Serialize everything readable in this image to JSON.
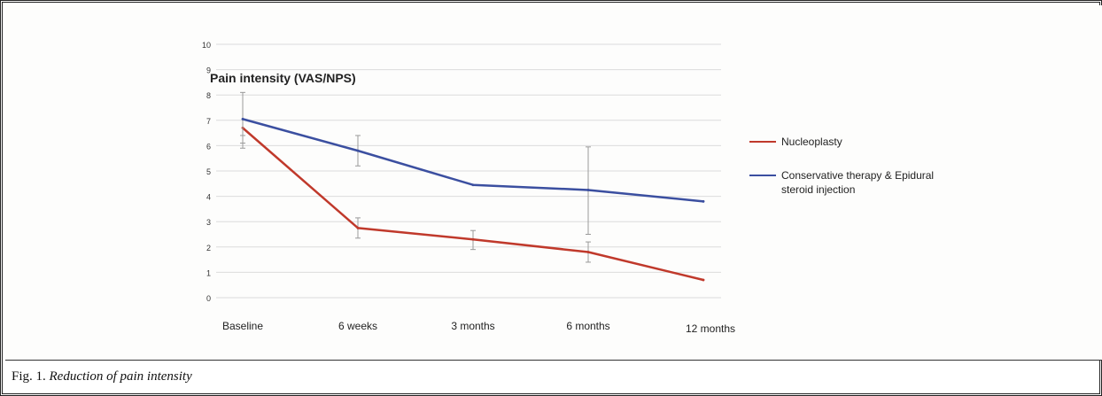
{
  "caption": {
    "label": "Fig. 1.",
    "text": "Reduction of pain intensity"
  },
  "chart_data": {
    "type": "line",
    "title": "Pain intensity (VAS/NPS)",
    "categories": [
      "Baseline",
      "6 weeks",
      "3 months",
      "6 months",
      "12 months"
    ],
    "y_ticks": [
      "0",
      "1",
      "2",
      "3",
      "4",
      "5",
      "6",
      "7",
      "8",
      "9",
      "10"
    ],
    "ylim": [
      0,
      10
    ],
    "grid": true,
    "legend_position": "right",
    "series": [
      {
        "name": "Nucleoplasty",
        "color": "#c0392b",
        "values": [
          6.7,
          2.75,
          2.3,
          1.8,
          0.7
        ],
        "error": [
          [
            5.9,
            6.4
          ],
          [
            2.35,
            3.15
          ],
          [
            1.9,
            2.65
          ],
          [
            1.4,
            2.2
          ],
          [
            null,
            null
          ]
        ]
      },
      {
        "name": "Conservative therapy & Epidural steroid injection",
        "color": "#3b4fa0",
        "values": [
          7.05,
          5.8,
          4.45,
          4.25,
          3.8
        ],
        "error": [
          [
            6.1,
            8.1
          ],
          [
            5.2,
            6.4
          ],
          [
            null,
            null
          ],
          [
            2.5,
            5.95
          ],
          [
            null,
            null
          ]
        ]
      }
    ]
  }
}
